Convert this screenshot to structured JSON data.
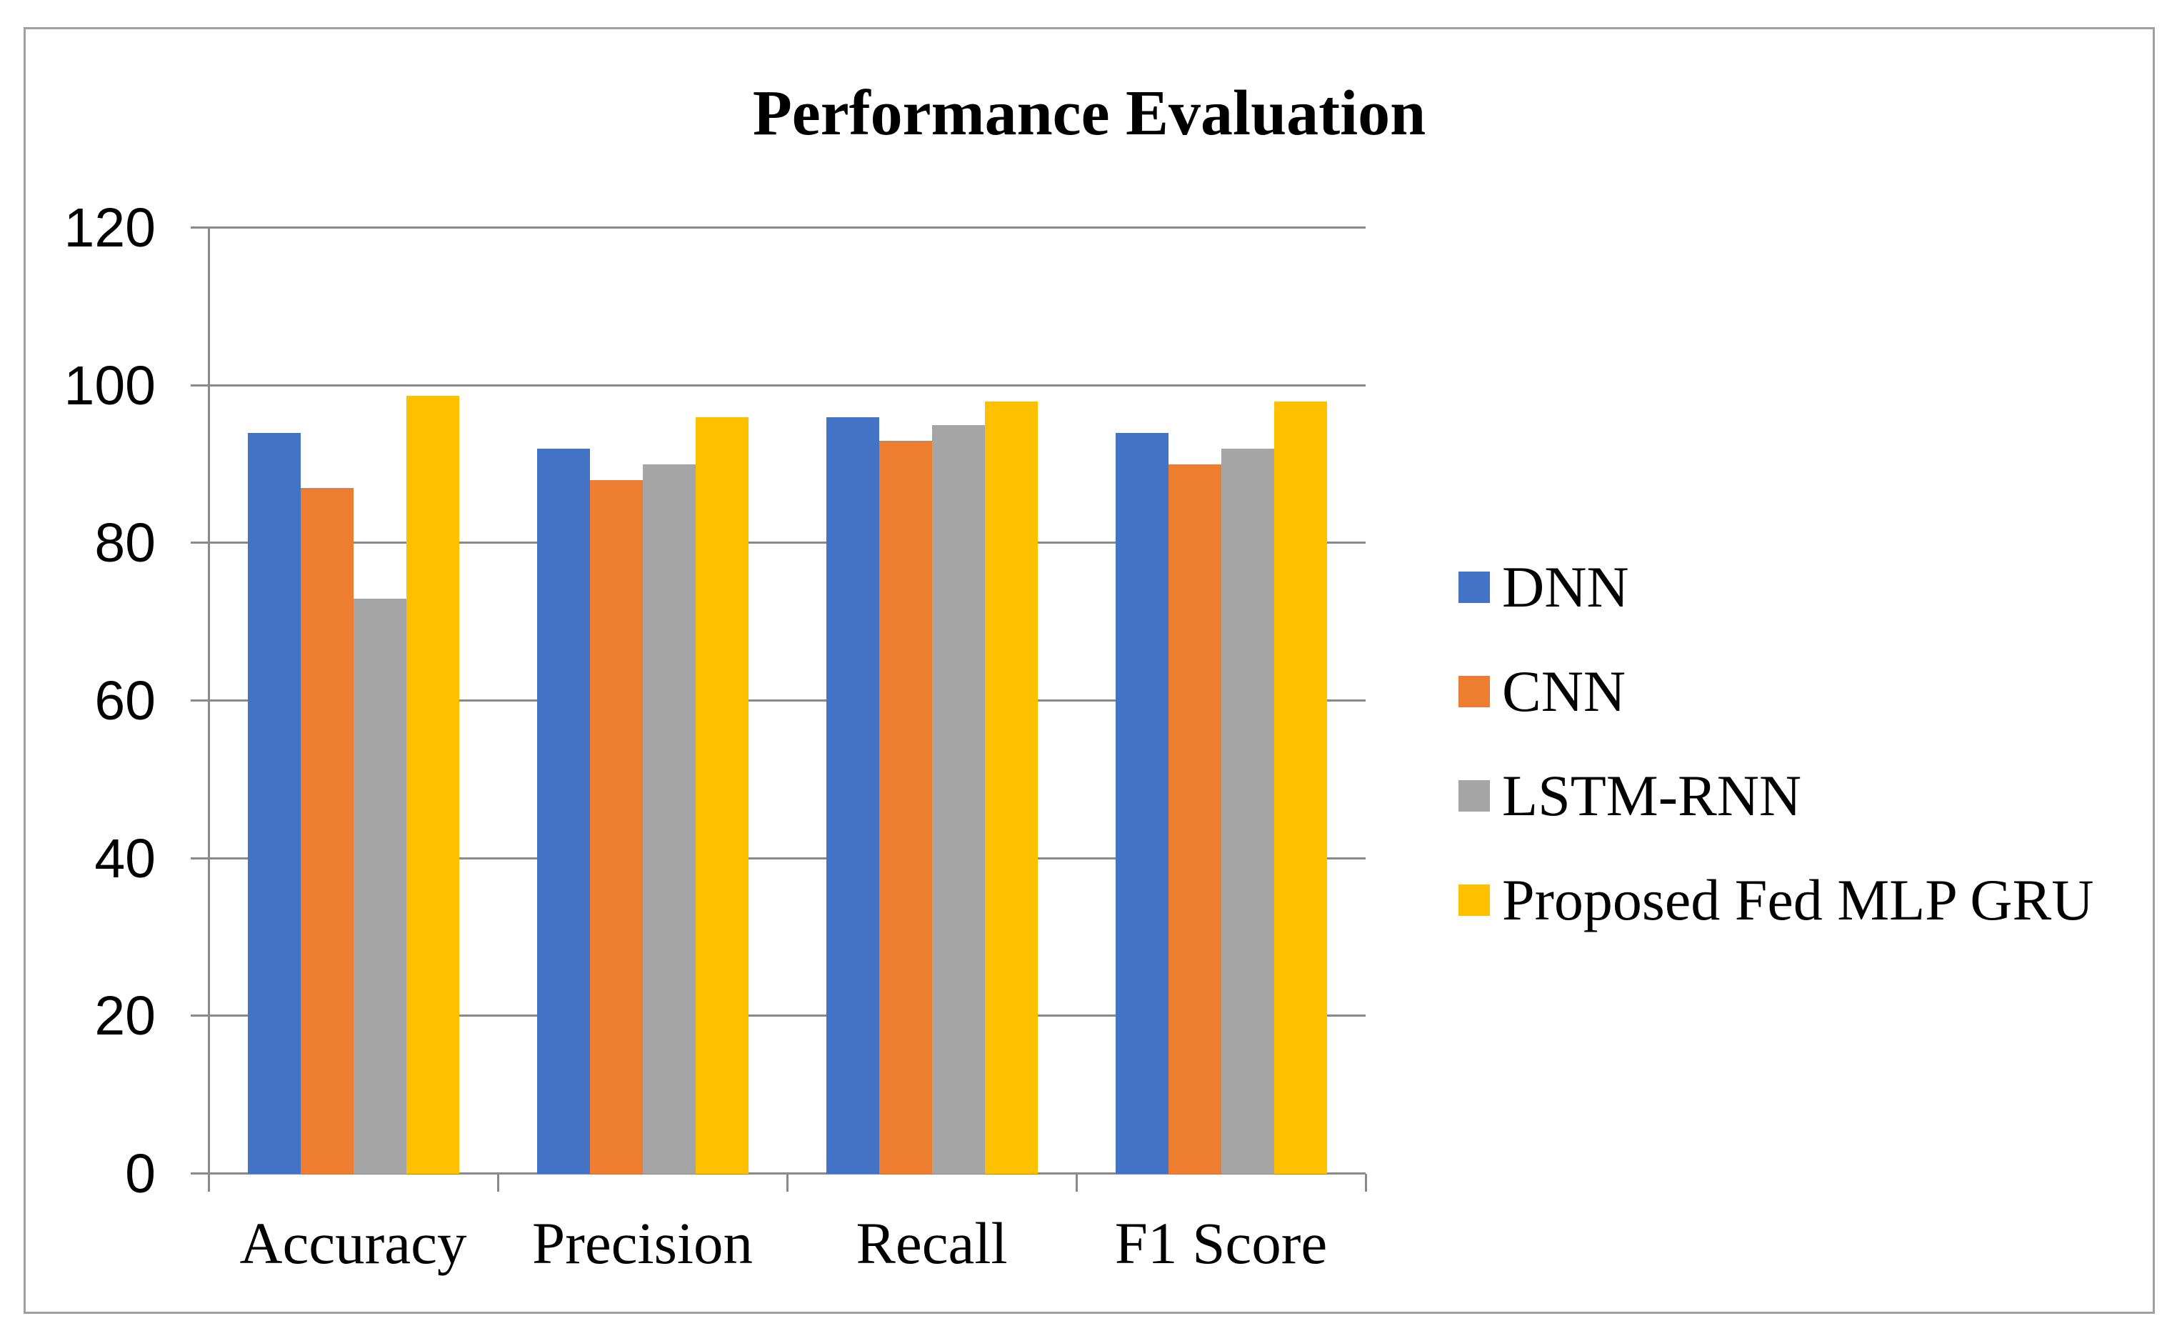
{
  "chart_data": {
    "type": "bar",
    "title": "Performance Evaluation",
    "categories": [
      "Accuracy",
      "Precision",
      "Recall",
      "F1 Score"
    ],
    "series": [
      {
        "name": "DNN",
        "color": "#4472C4",
        "values": [
          94,
          92,
          96,
          94
        ]
      },
      {
        "name": "CNN",
        "color": "#ED7D31",
        "values": [
          87,
          88,
          93,
          90
        ]
      },
      {
        "name": "LSTM-RNN",
        "color": "#A5A5A5",
        "values": [
          73,
          90,
          95,
          92
        ]
      },
      {
        "name": "Proposed Fed MLP GRU",
        "color": "#FFC000",
        "values": [
          98.7,
          96,
          98,
          98
        ]
      }
    ],
    "ylim": [
      0,
      120
    ],
    "yticks": [
      0,
      20,
      40,
      60,
      80,
      100,
      120
    ],
    "xlabel": "",
    "ylabel": "",
    "grid": "horizontal",
    "legend_position": "right"
  },
  "style": {
    "grid_color": "#8A8A8A",
    "axis_color": "#8A8A8A",
    "border_color": "#A0A0A0",
    "text_color": "#000000",
    "background": "#FFFFFF"
  }
}
